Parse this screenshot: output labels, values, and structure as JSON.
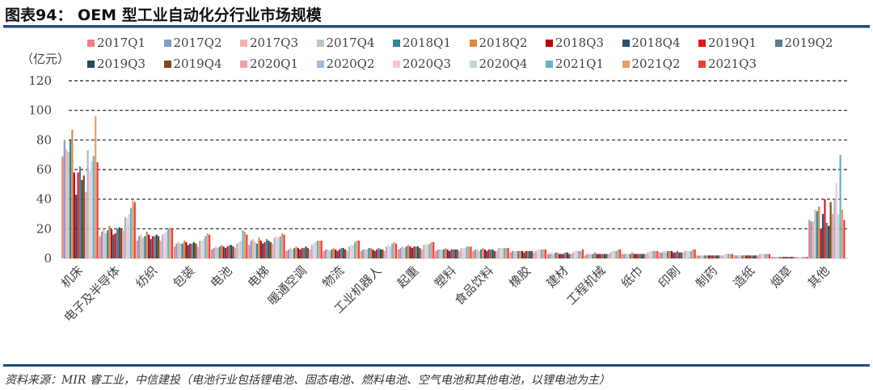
{
  "title": "图表94： OEM 型工业自动化分行业市场规模",
  "source": "资料来源：MIR 睿工业，中信建投（电池行业包括锂电池、固态电池、燃料电池、空气电池和其他电池，以锂电池为主）",
  "unit": "（亿元）",
  "chart_data": {
    "type": "bar",
    "title": "OEM 型工业自动化分行业市场规模",
    "ylabel": "亿元",
    "xlabel": "",
    "ylim": [
      0,
      120
    ],
    "yticks": [
      0,
      20,
      40,
      60,
      80,
      100,
      120
    ],
    "grid": "dashed horizontal",
    "legend_position": "top",
    "categories": [
      "机床",
      "电子及半导体",
      "纺织",
      "包装",
      "电池",
      "电梯",
      "暖通空调",
      "物流",
      "工业机器人",
      "起重",
      "塑料",
      "食品饮料",
      "橡胶",
      "建材",
      "工程机械",
      "纸巾",
      "印刷",
      "制药",
      "造纸",
      "烟草",
      "其他"
    ],
    "series": [
      {
        "name": "2017Q1",
        "color": "#f08080",
        "values": [
          69,
          15,
          12,
          8,
          6,
          9,
          5,
          5,
          5,
          6,
          5,
          5,
          4,
          3,
          2,
          3,
          4,
          2,
          2,
          1,
          26
        ]
      },
      {
        "name": "2017Q2",
        "color": "#7f9fc8",
        "values": [
          80,
          18,
          15,
          10,
          7,
          12,
          6,
          6,
          6,
          7,
          6,
          6,
          5,
          3,
          3,
          3,
          4,
          2,
          2,
          1,
          25
        ]
      },
      {
        "name": "2017Q3",
        "color": "#f4b0b0",
        "values": [
          74,
          20,
          16,
          11,
          8,
          13,
          7,
          6,
          6,
          8,
          6,
          6,
          5,
          4,
          3,
          3,
          5,
          2,
          2,
          1,
          25
        ]
      },
      {
        "name": "2017Q4",
        "color": "#b9c9c4",
        "values": [
          72,
          17,
          14,
          10,
          7,
          11,
          6,
          5,
          6,
          7,
          6,
          5,
          5,
          3,
          3,
          3,
          4,
          2,
          2,
          1,
          33
        ]
      },
      {
        "name": "2018Q1",
        "color": "#31849b",
        "values": [
          80,
          19,
          15,
          10,
          8,
          10,
          7,
          6,
          7,
          8,
          6,
          6,
          5,
          4,
          3,
          3,
          5,
          2,
          2,
          1,
          32
        ]
      },
      {
        "name": "2018Q2",
        "color": "#d8884a",
        "values": [
          87,
          22,
          18,
          12,
          9,
          14,
          8,
          7,
          7,
          9,
          7,
          7,
          5,
          4,
          4,
          4,
          5,
          2,
          2,
          1,
          35
        ]
      },
      {
        "name": "2018Q3",
        "color": "#c00000",
        "values": [
          58,
          20,
          16,
          11,
          8,
          12,
          7,
          6,
          6,
          8,
          6,
          6,
          5,
          3,
          3,
          3,
          5,
          2,
          2,
          1,
          20
        ]
      },
      {
        "name": "2018Q4",
        "color": "#2e4e72",
        "values": [
          43,
          16,
          13,
          9,
          7,
          10,
          6,
          5,
          5,
          7,
          5,
          5,
          4,
          3,
          3,
          3,
          4,
          2,
          2,
          1,
          30
        ]
      },
      {
        "name": "2019Q1",
        "color": "#e8141e",
        "values": [
          58,
          17,
          15,
          10,
          8,
          11,
          7,
          6,
          6,
          8,
          6,
          6,
          5,
          3,
          3,
          3,
          4,
          2,
          2,
          1,
          40
        ]
      },
      {
        "name": "2019Q2",
        "color": "#5a7d84",
        "values": [
          62,
          20,
          15,
          10,
          9,
          13,
          7,
          7,
          7,
          8,
          6,
          6,
          5,
          4,
          3,
          3,
          5,
          2,
          2,
          1,
          24
        ]
      },
      {
        "name": "2019Q3",
        "color": "#1f4f5a",
        "values": [
          53,
          21,
          16,
          11,
          9,
          12,
          8,
          7,
          6,
          8,
          6,
          6,
          5,
          4,
          3,
          3,
          4,
          2,
          2,
          1,
          22
        ]
      },
      {
        "name": "2019Q4",
        "color": "#8b4513",
        "values": [
          56,
          20,
          15,
          10,
          8,
          11,
          7,
          6,
          6,
          7,
          6,
          5,
          5,
          3,
          3,
          3,
          4,
          2,
          2,
          1,
          38
        ]
      },
      {
        "name": "2020Q1",
        "color": "#f4a0a8",
        "values": [
          45,
          19,
          12,
          8,
          7,
          10,
          6,
          5,
          5,
          6,
          5,
          5,
          4,
          3,
          3,
          3,
          4,
          2,
          2,
          1,
          30
        ]
      },
      {
        "name": "2020Q2",
        "color": "#a6b8d4",
        "values": [
          73,
          28,
          16,
          12,
          10,
          14,
          9,
          8,
          8,
          9,
          7,
          7,
          5,
          4,
          4,
          4,
          5,
          2,
          3,
          1,
          40
        ]
      },
      {
        "name": "2020Q3",
        "color": "#f8c8d0",
        "values": [
          59,
          27,
          17,
          12,
          11,
          15,
          10,
          9,
          9,
          10,
          7,
          7,
          6,
          5,
          5,
          5,
          5,
          3,
          3,
          1,
          51
        ]
      },
      {
        "name": "2020Q4",
        "color": "#c8d4dc",
        "values": [
          66,
          30,
          18,
          13,
          12,
          14,
          11,
          9,
          8,
          9,
          7,
          7,
          6,
          5,
          5,
          5,
          5,
          3,
          3,
          1,
          30
        ]
      },
      {
        "name": "2021Q1",
        "color": "#6ab0c8",
        "values": [
          69,
          34,
          20,
          15,
          19,
          15,
          12,
          11,
          10,
          10,
          8,
          7,
          6,
          5,
          5,
          5,
          5,
          3,
          3,
          1,
          70
        ]
      },
      {
        "name": "2021Q2",
        "color": "#e6a06a",
        "values": [
          96,
          39,
          21,
          17,
          18,
          17,
          12,
          12,
          11,
          11,
          8,
          7,
          6,
          5,
          6,
          5,
          6,
          3,
          3,
          1,
          33
        ]
      },
      {
        "name": "2021Q3",
        "color": "#e84040",
        "values": [
          65,
          38,
          20,
          16,
          16,
          16,
          12,
          12,
          10,
          11,
          8,
          7,
          6,
          6,
          6,
          5,
          6,
          3,
          3,
          1,
          26
        ]
      }
    ]
  }
}
